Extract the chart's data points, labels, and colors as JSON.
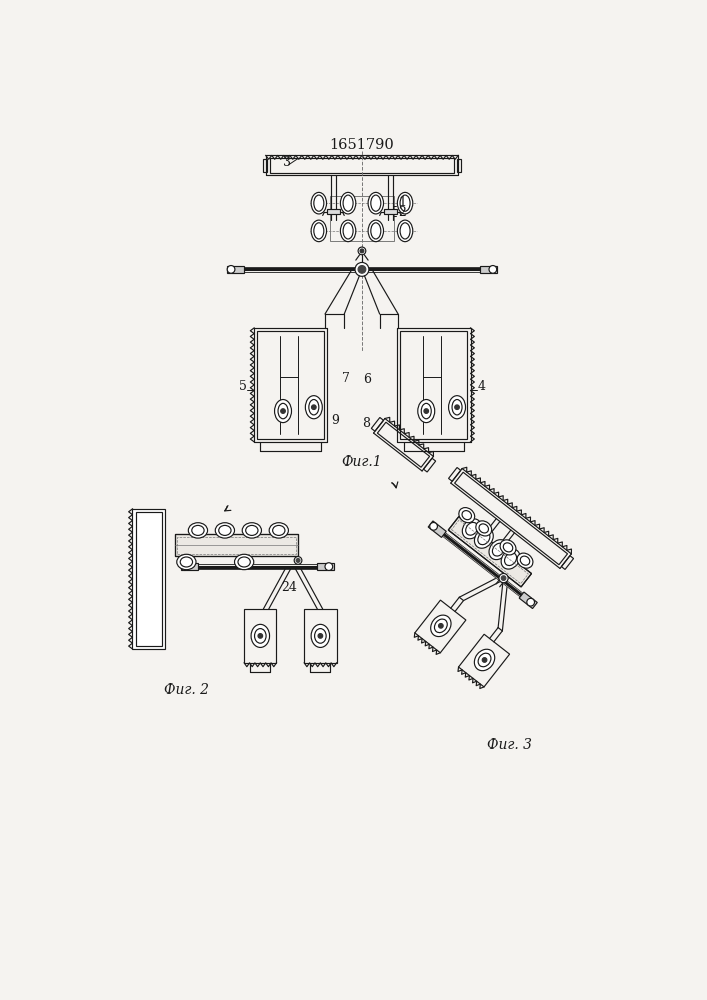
{
  "title": "1651790",
  "bg_color": "#f5f3f0",
  "line_color": "#1a1a1a",
  "lw": 0.85,
  "fig1_label": "Фиг.1",
  "fig2_label": "Фиг. 2",
  "fig3_label": "Фиг. 3"
}
